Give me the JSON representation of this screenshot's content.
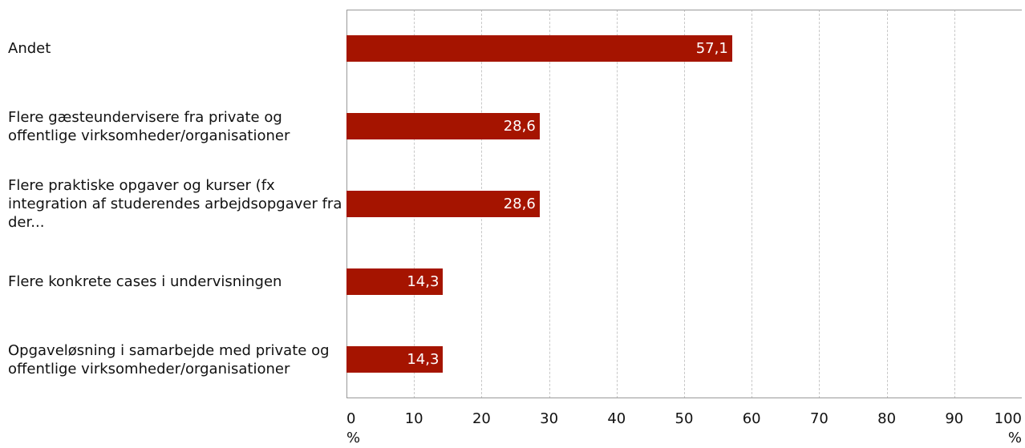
{
  "chart_data": {
    "type": "bar",
    "orientation": "horizontal",
    "categories": [
      "Andet",
      "Flere gæsteundervisere fra private og offentlige virksomheder/organisationer",
      "Flere praktiske opgaver og kurser (fx integration af studerendes arbejdsopgaver fra der...",
      "Flere konkrete cases i undervisningen",
      "Opgaveløsning i samarbejde med private og offentlige virksomheder/organisationer"
    ],
    "values": [
      57.1,
      28.6,
      28.6,
      14.3,
      14.3
    ],
    "value_labels": [
      "57,1",
      "28,6",
      "28,6",
      "14,3",
      "14,3"
    ],
    "color": "#a51400",
    "xlim": [
      0,
      100
    ],
    "xticks": [
      {
        "value": 0,
        "label": "0 %"
      },
      10,
      20,
      30,
      40,
      50,
      60,
      70,
      80,
      90,
      {
        "value": 100,
        "label": "100 %"
      }
    ],
    "grid": true
  }
}
